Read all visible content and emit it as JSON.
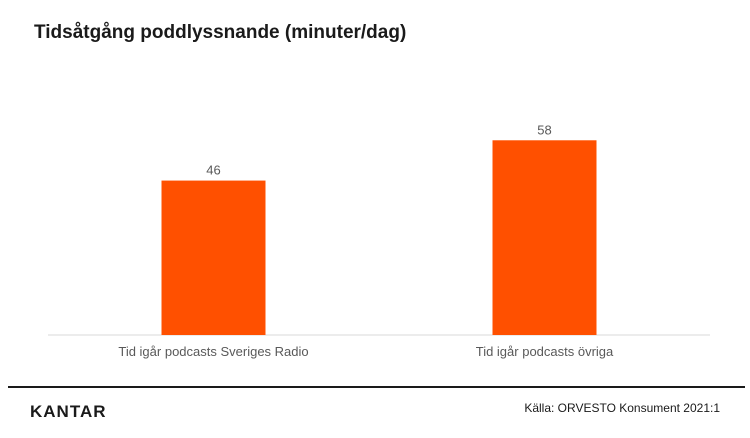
{
  "header": {
    "title": "Tidsåtgång poddlyssnande (minuter/dag)"
  },
  "footer": {
    "logo_text": "KANTAR",
    "source": "Källa: ORVESTO Konsument 2021:1"
  },
  "colors": {
    "bar": "#ff5000",
    "axis": "#d9d9d9",
    "text": "#595959"
  },
  "chart_data": {
    "type": "bar",
    "title": "Tidsåtgång poddlyssnande (minuter/dag)",
    "categories": [
      "Tid igår podcasts Sveriges Radio",
      "Tid igår podcasts övriga"
    ],
    "values": [
      46,
      58
    ],
    "data_labels": [
      "46",
      "58"
    ],
    "xlabel": "",
    "ylabel": "",
    "ylim": [
      0,
      70
    ],
    "grid": false,
    "legend": "none"
  }
}
